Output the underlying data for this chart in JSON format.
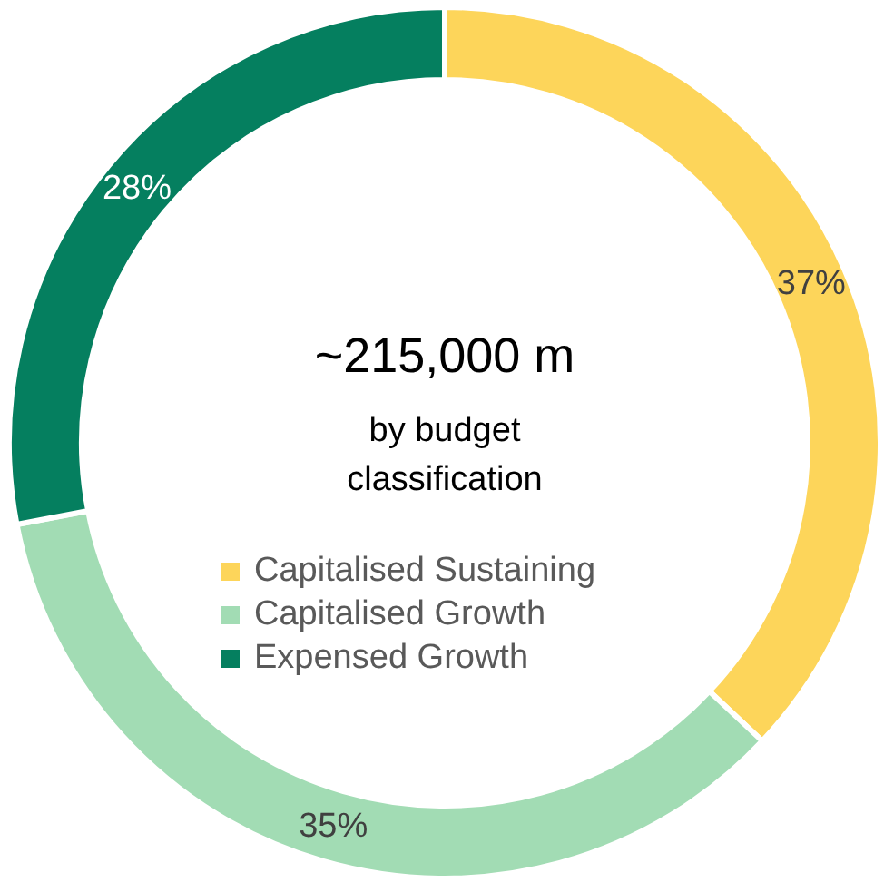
{
  "chart_data": {
    "type": "donut",
    "title": "~215,000 m",
    "subtitle": "by budget classification",
    "categories": [
      "Capitalised Sustaining",
      "Capitalised Growth",
      "Expensed Growth"
    ],
    "values": [
      37,
      35,
      28
    ],
    "value_labels": [
      "37%",
      "35%",
      "28%"
    ],
    "colors": [
      "#fdd55a",
      "#a2dcb4",
      "#057f5f"
    ],
    "data_labels": true,
    "legend": "center"
  }
}
